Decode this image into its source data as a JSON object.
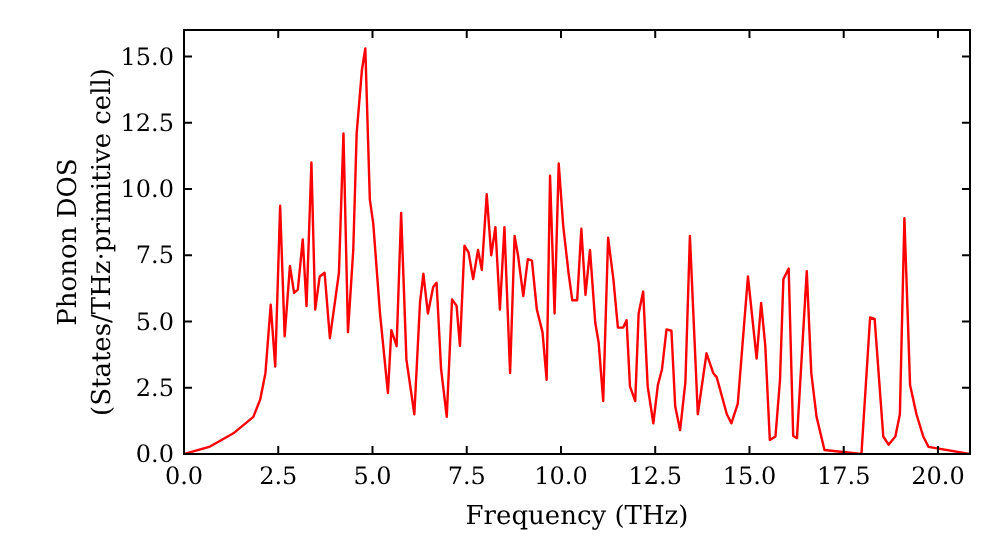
{
  "chart_data": {
    "type": "line",
    "xlabel": "Frequency (THz)",
    "ylabel": "Phonon DOS\n(States/THz·primitive cell)",
    "xlim": [
      0,
      20.85
    ],
    "ylim": [
      0,
      16
    ],
    "xticks": [
      {
        "value": 0,
        "label": "0.0"
      },
      {
        "value": 2.5,
        "label": "2.5"
      },
      {
        "value": 5,
        "label": "5.0"
      },
      {
        "value": 7.5,
        "label": "7.5"
      },
      {
        "value": 10,
        "label": "10.0"
      },
      {
        "value": 12.5,
        "label": "12.5"
      },
      {
        "value": 15,
        "label": "15.0"
      },
      {
        "value": 17.5,
        "label": "17.5"
      },
      {
        "value": 20,
        "label": "20.0"
      }
    ],
    "yticks": [
      {
        "value": 0,
        "label": "0.0"
      },
      {
        "value": 2.5,
        "label": "2.5"
      },
      {
        "value": 5,
        "label": "5.0"
      },
      {
        "value": 7.5,
        "label": "7.5"
      },
      {
        "value": 10,
        "label": "10.0"
      },
      {
        "value": 12.5,
        "label": "12.5"
      },
      {
        "value": 15,
        "label": "15.0"
      }
    ],
    "grid": false,
    "marker": "none",
    "line_style": "solid",
    "series": [
      {
        "color": "#ff0000",
        "x": [
          0,
          0.69,
          1.31,
          1.84,
          2.02,
          2.16,
          2.3,
          2.42,
          2.55,
          2.67,
          2.81,
          2.92,
          3.02,
          3.15,
          3.25,
          3.38,
          3.48,
          3.6,
          3.73,
          3.87,
          4.01,
          4.11,
          4.23,
          4.35,
          4.49,
          4.58,
          4.72,
          4.81,
          4.93,
          5.02,
          5.2,
          5.41,
          5.5,
          5.64,
          5.76,
          5.9,
          6.11,
          6.26,
          6.35,
          6.47,
          6.61,
          6.7,
          6.82,
          6.97,
          7.11,
          7.23,
          7.32,
          7.44,
          7.55,
          7.67,
          7.8,
          7.9,
          8.03,
          8.15,
          8.26,
          8.38,
          8.5,
          8.65,
          8.77,
          8.86,
          9.0,
          9.12,
          9.23,
          9.36,
          9.51,
          9.62,
          9.71,
          9.83,
          9.94,
          10.06,
          10.2,
          10.3,
          10.43,
          10.54,
          10.65,
          10.77,
          10.91,
          11.0,
          11.12,
          11.25,
          11.39,
          11.51,
          11.65,
          11.74,
          11.83,
          11.97,
          12.06,
          12.18,
          12.3,
          12.45,
          12.57,
          12.68,
          12.8,
          12.93,
          13.03,
          13.16,
          13.3,
          13.42,
          13.63,
          13.86,
          14.04,
          14.13,
          14.4,
          14.52,
          14.69,
          14.96,
          15.19,
          15.31,
          15.42,
          15.54,
          15.69,
          15.81,
          15.9,
          16.04,
          16.16,
          16.26,
          16.52,
          16.64,
          16.78,
          16.99,
          17.97,
          18.2,
          18.32,
          18.55,
          18.69,
          18.87,
          18.99,
          19.11,
          19.26,
          19.43,
          19.61,
          19.75,
          20.85
        ],
        "values": [
          0,
          0.28,
          0.78,
          1.4,
          2.05,
          3.05,
          5.63,
          3.3,
          9.37,
          4.44,
          7.1,
          6.08,
          6.2,
          8.1,
          5.58,
          11.0,
          5.45,
          6.7,
          6.84,
          4.37,
          5.8,
          6.84,
          12.1,
          4.6,
          7.7,
          12.1,
          14.5,
          15.3,
          9.6,
          8.7,
          5.3,
          2.3,
          4.67,
          4.07,
          9.1,
          3.56,
          1.5,
          5.7,
          6.8,
          5.3,
          6.3,
          6.46,
          3.2,
          1.4,
          5.83,
          5.6,
          4.07,
          7.86,
          7.6,
          6.6,
          7.7,
          6.95,
          9.8,
          7.5,
          8.56,
          5.45,
          8.56,
          3.05,
          8.23,
          7.5,
          5.96,
          7.35,
          7.3,
          5.45,
          4.6,
          2.8,
          10.5,
          5.3,
          10.96,
          8.6,
          6.84,
          5.8,
          5.8,
          8.5,
          6.0,
          7.7,
          4.95,
          4.2,
          2.0,
          8.16,
          6.6,
          4.77,
          4.77,
          5.05,
          2.55,
          2.0,
          5.3,
          6.13,
          2.55,
          1.16,
          2.6,
          3.2,
          4.7,
          4.65,
          1.8,
          0.9,
          2.7,
          8.23,
          1.5,
          3.8,
          3.05,
          2.9,
          1.5,
          1.16,
          1.9,
          6.7,
          3.6,
          5.7,
          4.07,
          0.53,
          0.66,
          2.8,
          6.6,
          7.0,
          0.68,
          0.6,
          6.9,
          3.05,
          1.4,
          0.15,
          0,
          5.15,
          5.1,
          0.66,
          0.35,
          0.66,
          1.5,
          8.9,
          2.6,
          1.5,
          0.66,
          0.27,
          0
        ]
      }
    ]
  }
}
